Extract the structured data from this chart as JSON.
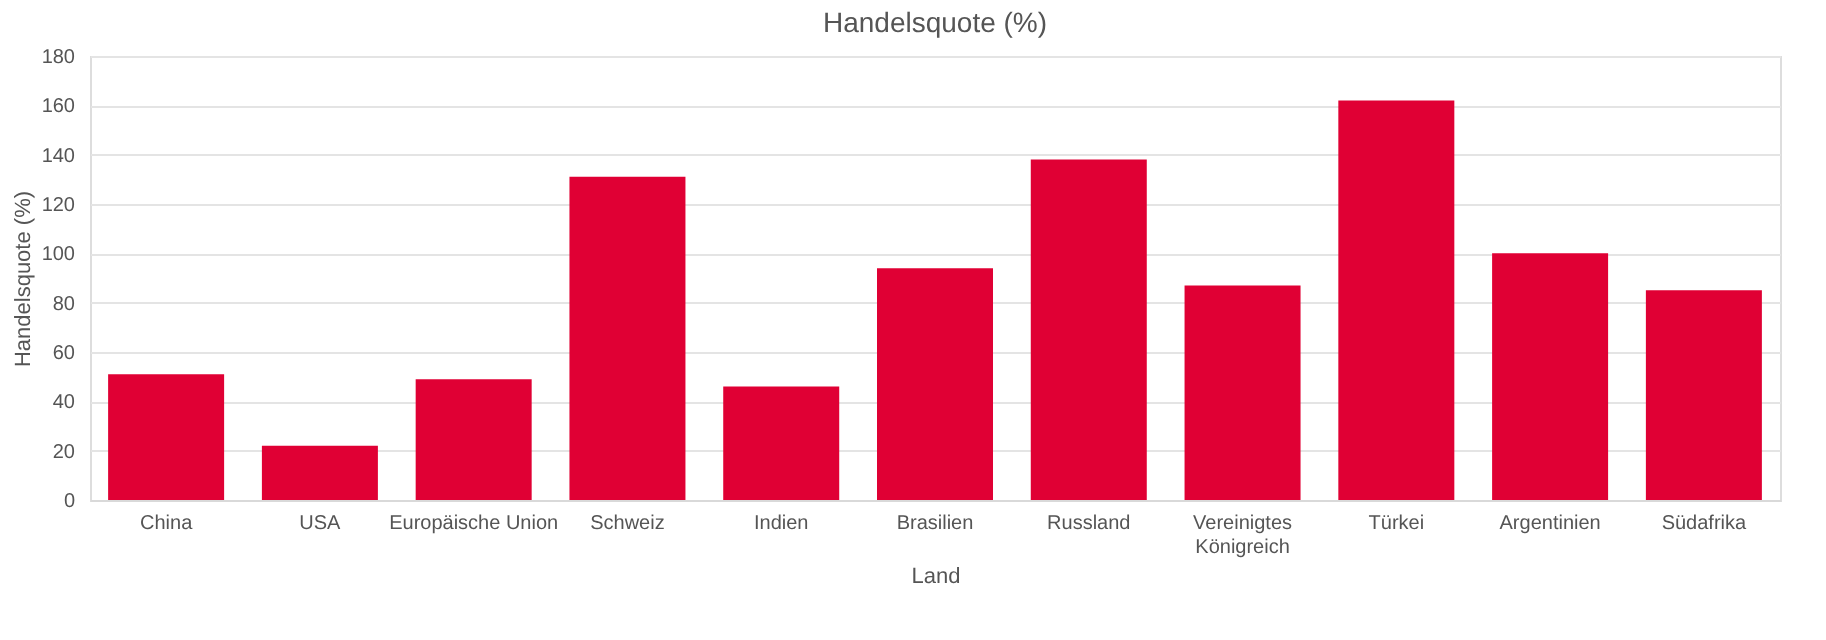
{
  "chart_data": {
    "type": "bar",
    "title": "Handelsquote (%)",
    "xlabel": "Land",
    "ylabel": "Handelsquote (%)",
    "categories": [
      "China",
      "USA",
      "Europäische Union",
      "Schweiz",
      "Indien",
      "Brasilien",
      "Russland",
      "Vereinigtes Königreich",
      "Türkei",
      "Argentinien",
      "Südafrika"
    ],
    "values": [
      51,
      22,
      49,
      131,
      46,
      94,
      138,
      87,
      162,
      100,
      85
    ],
    "color": "#e00034",
    "ylim": [
      0,
      180
    ],
    "yticks": [
      0,
      20,
      40,
      60,
      80,
      100,
      120,
      140,
      160,
      180
    ],
    "grid": "y"
  }
}
